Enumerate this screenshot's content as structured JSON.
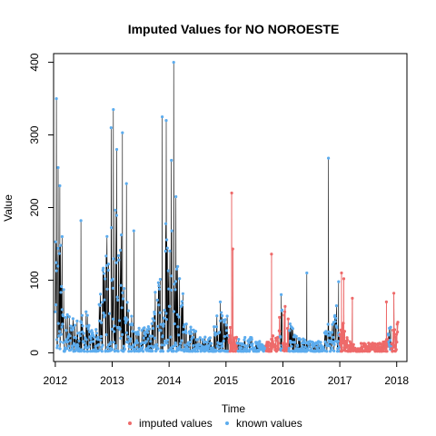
{
  "chart_data": {
    "type": "line",
    "title": "Imputed Values for  NO NOROESTE",
    "xlabel": "Time",
    "ylabel": "Value",
    "xlim": [
      2011.97,
      2018.18
    ],
    "ylim": [
      -12,
      412
    ],
    "x_ticks": [
      2012,
      2013,
      2014,
      2015,
      2016,
      2017,
      2018
    ],
    "y_ticks": [
      0,
      100,
      200,
      300,
      400
    ],
    "x_tick_labels": [
      "2012",
      "2013",
      "2014",
      "2015",
      "2016",
      "2017",
      "2018"
    ],
    "y_tick_labels": [
      "0",
      "100",
      "200",
      "300",
      "400"
    ],
    "legend": {
      "placement": "bottom",
      "entries": [
        {
          "label": "imputed values",
          "color": "#EE6A6A"
        },
        {
          "label": "known values",
          "color": "#5CACEE"
        }
      ]
    },
    "colors": {
      "line": "#000000",
      "known": "#5CACEE",
      "imputed": "#EE6A6A"
    },
    "envelope": {
      "x": [
        2012.0,
        2012.05,
        2012.1,
        2012.15,
        2012.2,
        2012.3,
        2012.4,
        2012.5,
        2012.6,
        2012.7,
        2012.8,
        2012.9,
        2013.0,
        2013.05,
        2013.1,
        2013.2,
        2013.3,
        2013.4,
        2013.5,
        2013.6,
        2013.7,
        2013.8,
        2013.9,
        2014.0,
        2014.05,
        2014.1,
        2014.2,
        2014.3,
        2014.4,
        2014.5,
        2014.6,
        2014.7,
        2014.8,
        2014.9,
        2015.0,
        2015.1,
        2015.2,
        2015.3,
        2015.4,
        2015.5,
        2015.6,
        2015.7,
        2015.8,
        2015.9,
        2016.0,
        2016.1,
        2016.2,
        2016.3,
        2016.4,
        2016.5,
        2016.6,
        2016.7,
        2016.8,
        2016.9,
        2017.0,
        2017.1,
        2017.2,
        2017.3,
        2017.4,
        2017.5,
        2017.6,
        2017.7,
        2017.8,
        2017.9,
        2018.0
      ],
      "y": [
        120,
        180,
        130,
        80,
        50,
        40,
        35,
        50,
        30,
        25,
        70,
        120,
        190,
        200,
        160,
        90,
        50,
        35,
        25,
        25,
        40,
        80,
        150,
        170,
        190,
        150,
        80,
        40,
        25,
        20,
        20,
        18,
        30,
        50,
        40,
        25,
        18,
        15,
        18,
        12,
        12,
        10,
        15,
        30,
        60,
        50,
        20,
        15,
        15,
        12,
        12,
        15,
        30,
        60,
        40,
        25,
        12,
        10,
        10,
        10,
        10,
        10,
        12,
        40,
        35
      ]
    },
    "spikes": [
      {
        "x": 2012.02,
        "y": 350,
        "kind": "known"
      },
      {
        "x": 2012.05,
        "y": 255,
        "kind": "known"
      },
      {
        "x": 2012.08,
        "y": 230,
        "kind": "known"
      },
      {
        "x": 2012.12,
        "y": 160,
        "kind": "known"
      },
      {
        "x": 2012.45,
        "y": 182,
        "kind": "known"
      },
      {
        "x": 2012.98,
        "y": 310,
        "kind": "known"
      },
      {
        "x": 2013.02,
        "y": 335,
        "kind": "known"
      },
      {
        "x": 2013.08,
        "y": 280,
        "kind": "known"
      },
      {
        "x": 2013.18,
        "y": 303,
        "kind": "known"
      },
      {
        "x": 2013.25,
        "y": 233,
        "kind": "known"
      },
      {
        "x": 2013.38,
        "y": 168,
        "kind": "known"
      },
      {
        "x": 2013.88,
        "y": 325,
        "kind": "known"
      },
      {
        "x": 2013.95,
        "y": 320,
        "kind": "known"
      },
      {
        "x": 2014.04,
        "y": 265,
        "kind": "known"
      },
      {
        "x": 2014.08,
        "y": 400,
        "kind": "known"
      },
      {
        "x": 2014.12,
        "y": 215,
        "kind": "known"
      },
      {
        "x": 2014.9,
        "y": 70,
        "kind": "known"
      },
      {
        "x": 2015.1,
        "y": 220,
        "kind": "imputed"
      },
      {
        "x": 2015.12,
        "y": 143,
        "kind": "imputed"
      },
      {
        "x": 2015.8,
        "y": 136,
        "kind": "imputed"
      },
      {
        "x": 2015.97,
        "y": 80,
        "kind": "known"
      },
      {
        "x": 2016.42,
        "y": 110,
        "kind": "known"
      },
      {
        "x": 2016.8,
        "y": 268,
        "kind": "known"
      },
      {
        "x": 2016.98,
        "y": 98,
        "kind": "known"
      },
      {
        "x": 2017.03,
        "y": 110,
        "kind": "imputed"
      },
      {
        "x": 2017.07,
        "y": 102,
        "kind": "imputed"
      },
      {
        "x": 2017.22,
        "y": 75,
        "kind": "imputed"
      },
      {
        "x": 2017.82,
        "y": 70,
        "kind": "imputed"
      },
      {
        "x": 2017.95,
        "y": 82,
        "kind": "imputed"
      }
    ],
    "imputed_ranges": [
      [
        2015.05,
        2015.2
      ],
      [
        2015.7,
        2015.95
      ],
      [
        2016.0,
        2016.1
      ],
      [
        2017.0,
        2017.85
      ],
      [
        2017.9,
        2018.02
      ]
    ]
  }
}
